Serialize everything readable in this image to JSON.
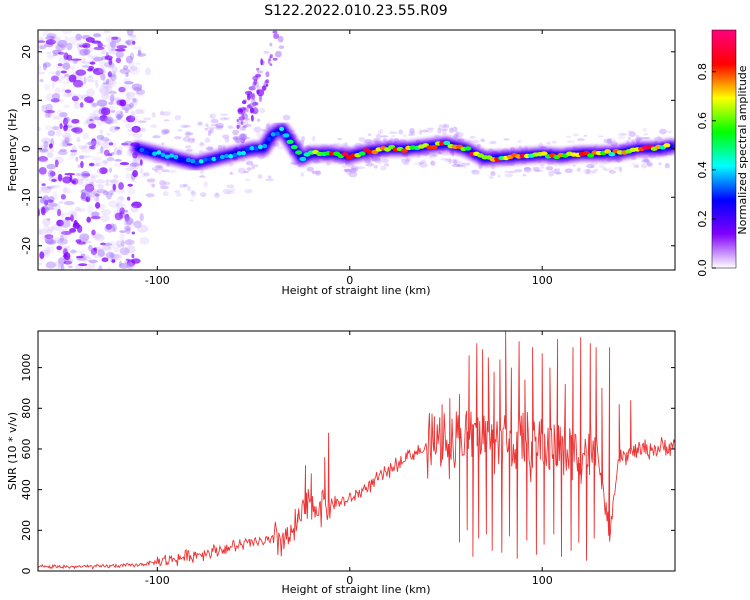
{
  "figure_title": "S122.2022.010.23.55.R09",
  "chart_data": [
    {
      "type": "heatmap",
      "xlabel": "Height of straight line (km)",
      "ylabel": "Frequency (Hz)",
      "xlim": [
        -162,
        169
      ],
      "ylim": [
        -25,
        24.5
      ],
      "xticks": [
        {
          "value": -100,
          "label": "-100"
        },
        {
          "value": 0,
          "label": "0"
        },
        {
          "value": 100,
          "label": "100"
        }
      ],
      "yticks": [
        {
          "value": -20,
          "label": "-20"
        },
        {
          "value": -10,
          "label": "-10"
        },
        {
          "value": 0,
          "label": "0"
        },
        {
          "value": 10,
          "label": "10"
        },
        {
          "value": 20,
          "label": "20"
        }
      ],
      "ridge": {
        "x": [
          -110,
          -100,
          -90,
          -80,
          -70,
          -60,
          -50,
          -45,
          -40,
          -35,
          -30,
          -25,
          -20,
          -10,
          0,
          10,
          20,
          30,
          40,
          50,
          60,
          70,
          80,
          90,
          100,
          110,
          120,
          130,
          140,
          150,
          160,
          167
        ],
        "y": [
          0,
          -1,
          -2,
          -3,
          -2,
          -1,
          0,
          0,
          3,
          4,
          1,
          -2,
          -1,
          -1,
          -1.5,
          -0.5,
          0,
          0,
          0.5,
          1,
          0,
          -2,
          -1.8,
          -1.5,
          -1.2,
          -1.5,
          -1,
          -1,
          -0.8,
          0,
          0,
          0.5
        ]
      },
      "colorbar": {
        "label": "Normalized spectral amplitude",
        "range": [
          0.0,
          0.97
        ],
        "ticks": [
          {
            "value": 0.0,
            "label": "0.0"
          },
          {
            "value": 0.2,
            "label": "0.2"
          },
          {
            "value": 0.4,
            "label": "0.4"
          },
          {
            "value": 0.6,
            "label": "0.6"
          },
          {
            "value": 0.8,
            "label": "0.8"
          }
        ],
        "colors": [
          "#ffffff",
          "#8000ff",
          "#0000ff",
          "#00ffff",
          "#00ff00",
          "#ffff00",
          "#ff0000",
          "#ff0080"
        ]
      }
    },
    {
      "type": "line",
      "xlabel": "Height of straight line (km)",
      "ylabel": "SNR (10 * v/v)",
      "xlim": [
        -162,
        169
      ],
      "ylim": [
        0,
        1180
      ],
      "color": "#ee3333",
      "xticks": [
        {
          "value": -100,
          "label": "-100"
        },
        {
          "value": 0,
          "label": "0"
        },
        {
          "value": 100,
          "label": "100"
        }
      ],
      "yticks": [
        {
          "value": 0,
          "label": "0"
        },
        {
          "value": 200,
          "label": "200"
        },
        {
          "value": 400,
          "label": "400"
        },
        {
          "value": 600,
          "label": "600"
        },
        {
          "value": 800,
          "label": "800"
        },
        {
          "value": 1000,
          "label": "1000"
        }
      ],
      "baseline": {
        "x": [
          -162,
          -130,
          -110,
          -90,
          -70,
          -50,
          -40,
          -30,
          -25,
          -20,
          -10,
          0,
          10,
          20,
          30,
          40,
          50,
          60,
          70,
          80,
          90,
          100,
          110,
          120,
          125,
          130,
          135,
          140,
          150,
          160,
          169
        ],
        "y": [
          20,
          22,
          30,
          60,
          100,
          140,
          150,
          170,
          280,
          320,
          330,
          350,
          420,
          490,
          570,
          600,
          640,
          660,
          660,
          640,
          620,
          620,
          600,
          580,
          600,
          500,
          180,
          550,
          600,
          600,
          620
        ]
      },
      "spikes": [
        {
          "x": -30,
          "y": 200
        },
        {
          "x": -27,
          "y": 240
        },
        {
          "x": -23,
          "y": 520
        },
        {
          "x": -20,
          "y": 480
        },
        {
          "x": -13,
          "y": 560
        },
        {
          "x": -11,
          "y": 680
        },
        {
          "x": 44,
          "y": 760
        },
        {
          "x": 48,
          "y": 820
        },
        {
          "x": 52,
          "y": 850
        },
        {
          "x": 57,
          "y": 870
        },
        {
          "x": 62,
          "y": 1060
        },
        {
          "x": 66,
          "y": 1120
        },
        {
          "x": 69,
          "y": 1090
        },
        {
          "x": 72,
          "y": 1050
        },
        {
          "x": 75,
          "y": 980
        },
        {
          "x": 78,
          "y": 1040
        },
        {
          "x": 81,
          "y": 1180
        },
        {
          "x": 84,
          "y": 1000
        },
        {
          "x": 88,
          "y": 1130
        },
        {
          "x": 91,
          "y": 940
        },
        {
          "x": 95,
          "y": 1100
        },
        {
          "x": 100,
          "y": 1070
        },
        {
          "x": 104,
          "y": 1000
        },
        {
          "x": 108,
          "y": 1140
        },
        {
          "x": 112,
          "y": 920
        },
        {
          "x": 116,
          "y": 1100
        },
        {
          "x": 120,
          "y": 1150
        },
        {
          "x": 125,
          "y": 1120
        },
        {
          "x": 128,
          "y": 1100
        },
        {
          "x": 131,
          "y": 900
        },
        {
          "x": 135,
          "y": 1100
        },
        {
          "x": 140,
          "y": 820
        },
        {
          "x": 146,
          "y": 840
        }
      ],
      "dips": [
        {
          "x": 57,
          "y": 140
        },
        {
          "x": 61,
          "y": 200
        },
        {
          "x": 64,
          "y": 70
        },
        {
          "x": 67,
          "y": 160
        },
        {
          "x": 71,
          "y": 180
        },
        {
          "x": 74,
          "y": 100
        },
        {
          "x": 79,
          "y": 90
        },
        {
          "x": 83,
          "y": 170
        },
        {
          "x": 87,
          "y": 60
        },
        {
          "x": 92,
          "y": 150
        },
        {
          "x": 97,
          "y": 80
        },
        {
          "x": 101,
          "y": 130
        },
        {
          "x": 106,
          "y": 180
        },
        {
          "x": 110,
          "y": 70
        },
        {
          "x": 115,
          "y": 100
        },
        {
          "x": 119,
          "y": 140
        },
        {
          "x": 123,
          "y": 50
        },
        {
          "x": 127,
          "y": 160
        }
      ]
    }
  ]
}
